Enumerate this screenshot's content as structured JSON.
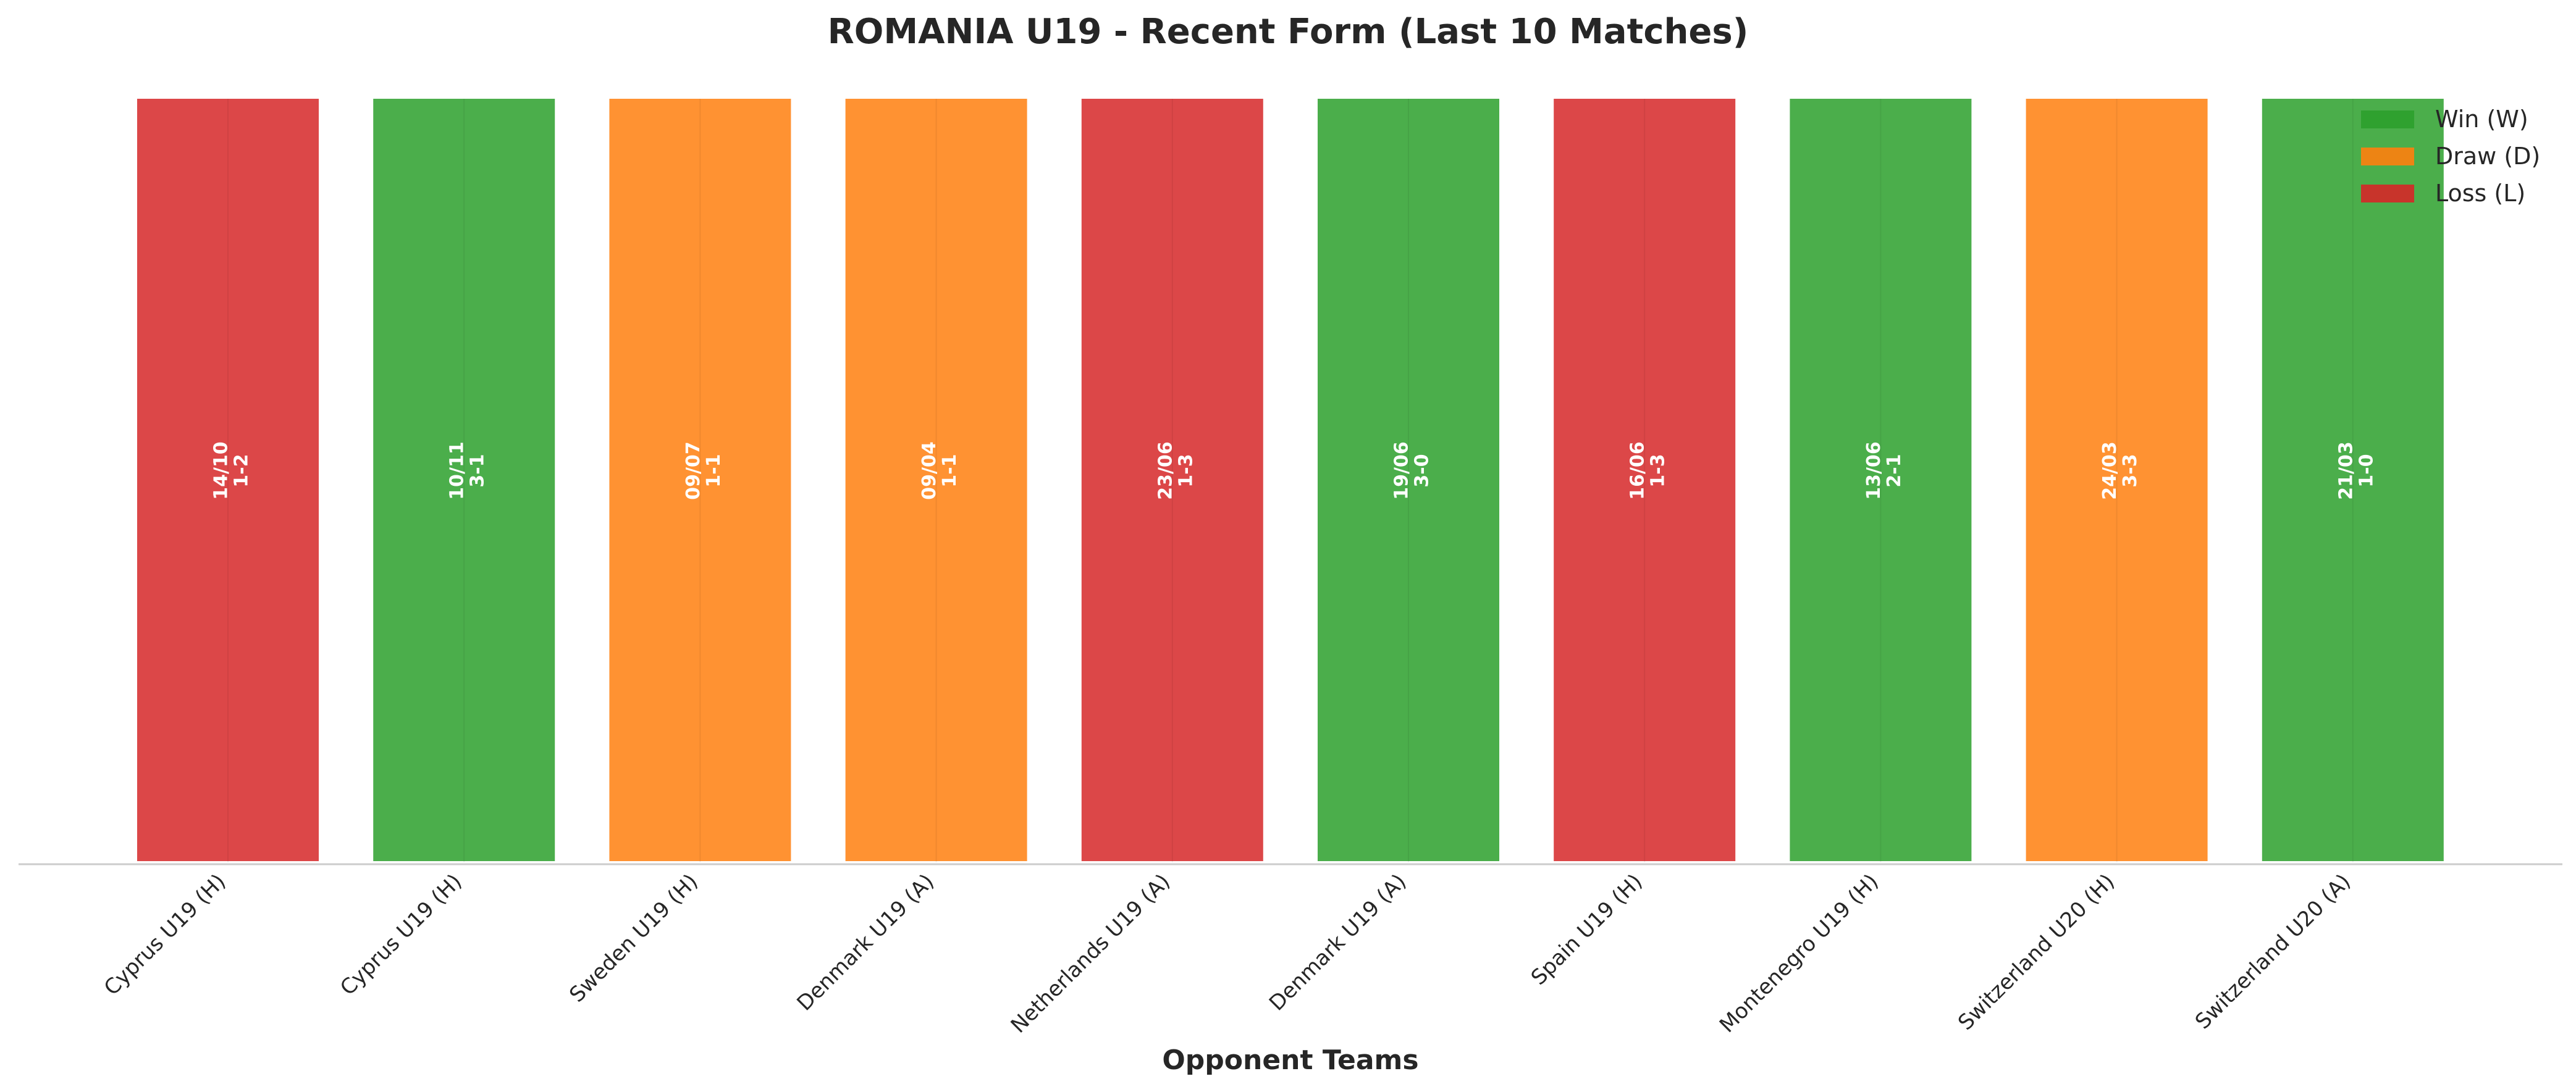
{
  "chart_data": {
    "type": "bar",
    "title": "ROMANIA U19 - Recent Form (Last 10 Matches)",
    "xlabel": "Opponent Teams",
    "ylabel": "",
    "ylim": [
      0,
      1
    ],
    "grid": false,
    "legend_position": "top-right",
    "categories": [
      "Cyprus U19 (H)",
      "Cyprus U19 (H)",
      "Sweden U19 (H)",
      "Denmark U19 (A)",
      "Netherlands U19 (A)",
      "Denmark U19 (A)",
      "Spain U19 (H)",
      "Montenegro U19 (H)",
      "Switzerland U20 (H)",
      "Switzerland U20 (A)"
    ],
    "values": [
      1,
      1,
      1,
      1,
      1,
      1,
      1,
      1,
      1,
      1
    ],
    "results": [
      "L",
      "W",
      "D",
      "D",
      "L",
      "W",
      "L",
      "W",
      "D",
      "W"
    ],
    "dates": [
      "14/10",
      "10/11",
      "09/07",
      "09/04",
      "23/06",
      "19/06",
      "16/06",
      "13/06",
      "24/03",
      "21/03"
    ],
    "scores": [
      "1-2",
      "3-1",
      "1-1",
      "1-1",
      "1-3",
      "3-0",
      "1-3",
      "2-1",
      "3-3",
      "1-0"
    ],
    "legend": [
      {
        "key": "W",
        "label": "Win (W)"
      },
      {
        "key": "D",
        "label": "Draw (D)"
      },
      {
        "key": "L",
        "label": "Loss (L)"
      }
    ],
    "colors": {
      "W": "#2ca02c",
      "D": "#ff7f0e",
      "L": "#d62728"
    }
  }
}
